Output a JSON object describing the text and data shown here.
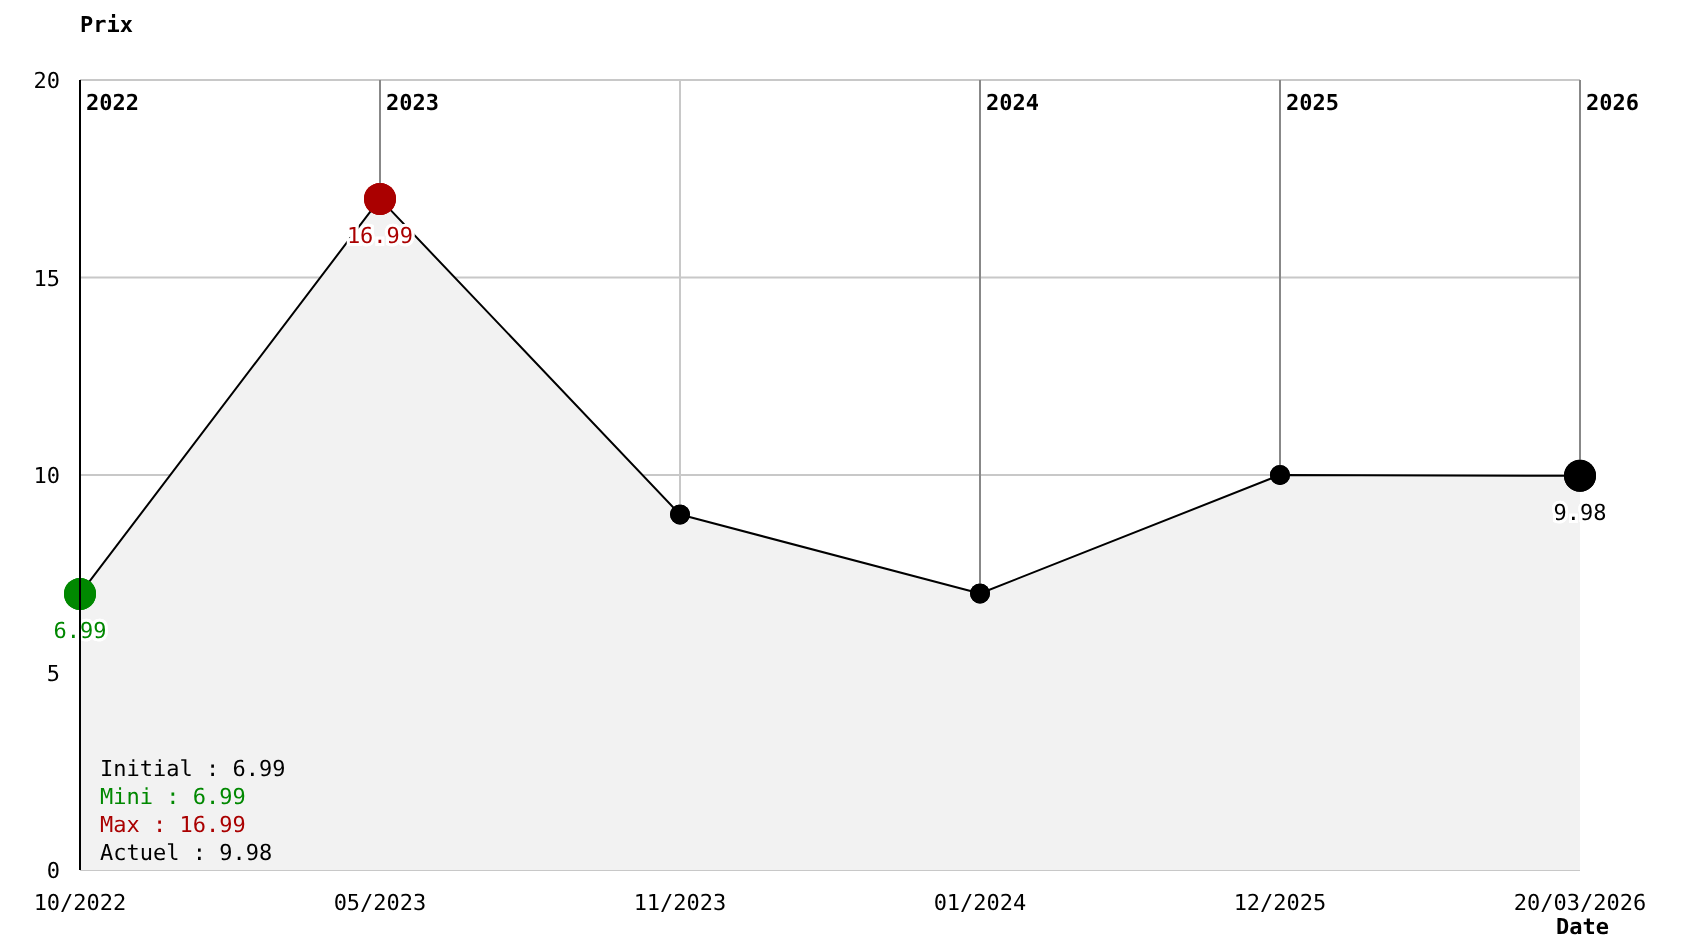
{
  "chart_data": {
    "type": "area",
    "ylabel": "Prix",
    "xlabel": "Date",
    "categories": [
      "10/2022",
      "05/2023",
      "11/2023",
      "01/2024",
      "12/2025",
      "20/03/2026"
    ],
    "series": [
      {
        "color": "#000000",
        "values": [
          6.99,
          16.99,
          9,
          7,
          10,
          9.98
        ],
        "colors": [
          "#008800",
          "#aa0000",
          "#000000",
          "#000000",
          "#000000",
          "#000000"
        ],
        "value_labels": [
          "6.99",
          "16.99",
          null,
          null,
          null,
          "9.98"
        ]
      }
    ],
    "ylim": [
      0,
      20
    ],
    "yticks": [
      0,
      5,
      10,
      15,
      20
    ],
    "grid": "y",
    "marker": "circle",
    "ref_lines": [
      {
        "axis": "x",
        "value": "05/2023",
        "label": "2023",
        "color": "#888888"
      },
      {
        "axis": "x",
        "value": "11/2023",
        "color": "#c8c8c8"
      },
      {
        "axis": "x",
        "value": "01/2024",
        "label": "2024",
        "color": "#888888"
      },
      {
        "axis": "x",
        "value": "12/2025",
        "label": "2025",
        "color": "#888888"
      },
      {
        "axis": "x",
        "value": "20/03/2026",
        "label": "2026",
        "color": "#888888"
      }
    ],
    "annotations": [
      "2022",
      "Initial : 6.99",
      "Mini : 6.99",
      "Max : 16.99",
      "Actuel : 9.98"
    ]
  }
}
